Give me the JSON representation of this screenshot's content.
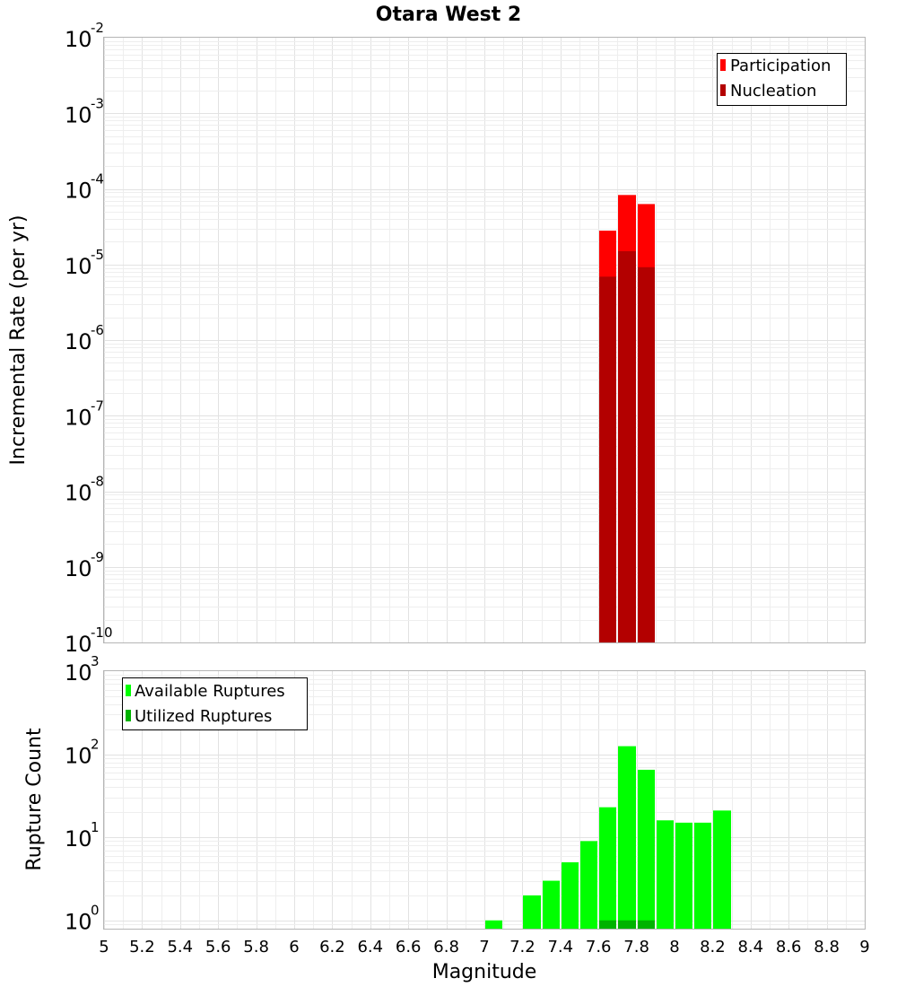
{
  "chart_data": [
    {
      "type": "bar",
      "title": "Otara West 2",
      "ylabel": "Incremental Rate (per yr)",
      "xlim": [
        5,
        9
      ],
      "ylim_exp": [
        -10,
        -2
      ],
      "y_scale": "log",
      "bin_width": 0.1,
      "ytick_base": "10",
      "ytick_exponents": [
        "-10",
        "-9",
        "-8",
        "-7",
        "-6",
        "-5",
        "-4",
        "-3",
        "-2"
      ],
      "legend_position": "top-right",
      "series": [
        {
          "name": "Participation",
          "color": "#ff0000",
          "x": [
            7.65,
            7.75,
            7.85
          ],
          "values": [
            2.8e-05,
            8.3e-05,
            6.3e-05
          ]
        },
        {
          "name": "Nucleation",
          "color": "#b30000",
          "x": [
            7.65,
            7.75,
            7.85
          ],
          "values": [
            6.9e-06,
            1.5e-05,
            9.2e-06
          ]
        }
      ]
    },
    {
      "type": "bar",
      "ylabel": "Rupture Count",
      "xlabel": "Magnitude",
      "xlim": [
        5,
        9
      ],
      "ylim_exp": [
        -0.1,
        3
      ],
      "y_scale": "log",
      "bin_width": 0.1,
      "ytick_base": "10",
      "ytick_exponents": [
        "0",
        "1",
        "2",
        "3"
      ],
      "xticks": [
        "5",
        "5.2",
        "5.4",
        "5.6",
        "5.8",
        "6",
        "6.2",
        "6.4",
        "6.6",
        "6.8",
        "7",
        "7.2",
        "7.4",
        "7.6",
        "7.8",
        "8",
        "8.2",
        "8.4",
        "8.6",
        "8.8",
        "9"
      ],
      "legend_position": "top-left",
      "series": [
        {
          "name": "Available Ruptures",
          "color": "#00ff00",
          "x": [
            7.05,
            7.25,
            7.35,
            7.45,
            7.55,
            7.65,
            7.75,
            7.85,
            7.95,
            8.05,
            8.15,
            8.25
          ],
          "values": [
            1,
            2,
            3,
            5,
            9,
            23,
            125,
            65,
            16,
            15,
            15,
            21
          ]
        },
        {
          "name": "Utilized Ruptures",
          "color": "#00b300",
          "x": [
            7.65,
            7.75,
            7.85
          ],
          "values": [
            1,
            1,
            1
          ]
        }
      ]
    }
  ]
}
